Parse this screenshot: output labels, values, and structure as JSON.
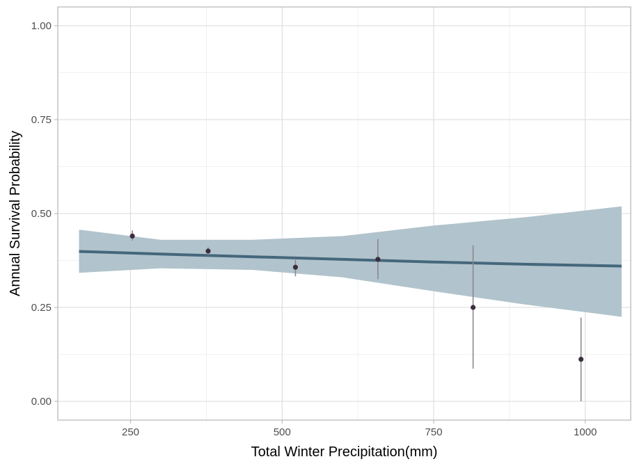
{
  "chart_data": {
    "type": "scatter",
    "xlabel": "Total Winter Precipitation(mm)",
    "ylabel": "Annual Survival Probability",
    "xlim": [
      130,
      1075
    ],
    "ylim": [
      -0.05,
      1.05
    ],
    "x_ticks": [
      250,
      500,
      750,
      1000
    ],
    "x_tick_labels": [
      "250",
      "500",
      "750",
      "1000"
    ],
    "y_ticks": [
      0,
      0.25,
      0.5,
      0.75,
      1.0
    ],
    "y_tick_labels": [
      "0.00",
      "0.25",
      "0.50",
      "0.75",
      "1.00"
    ],
    "grid": true,
    "points": [
      {
        "x": 253,
        "y": 0.44,
        "lower": 0.428,
        "upper": 0.455
      },
      {
        "x": 378,
        "y": 0.4,
        "lower": 0.39,
        "upper": 0.41
      },
      {
        "x": 522,
        "y": 0.357,
        "lower": 0.333,
        "upper": 0.38
      },
      {
        "x": 658,
        "y": 0.378,
        "lower": 0.325,
        "upper": 0.432
      },
      {
        "x": 815,
        "y": 0.25,
        "lower": 0.087,
        "upper": 0.415
      },
      {
        "x": 993,
        "y": 0.112,
        "lower": 0.0,
        "upper": 0.223
      }
    ],
    "trend": {
      "x": [
        165,
        300,
        450,
        600,
        750,
        900,
        1060
      ],
      "y": [
        0.399,
        0.392,
        0.385,
        0.378,
        0.371,
        0.365,
        0.36
      ],
      "lower": [
        0.342,
        0.354,
        0.35,
        0.33,
        0.293,
        0.258,
        0.225
      ],
      "upper": [
        0.457,
        0.43,
        0.43,
        0.44,
        0.468,
        0.49,
        0.519
      ]
    },
    "colors": {
      "ribbon": "#b1c3cc",
      "trend_line": "#45677c",
      "point": "#3a2e3d",
      "errorbar": "#8c8790",
      "grid_major": "#d9d9d9",
      "grid_minor": "#ececec",
      "panel_border": "#b3b3b3",
      "tick_label": "#4d4d4d"
    }
  }
}
